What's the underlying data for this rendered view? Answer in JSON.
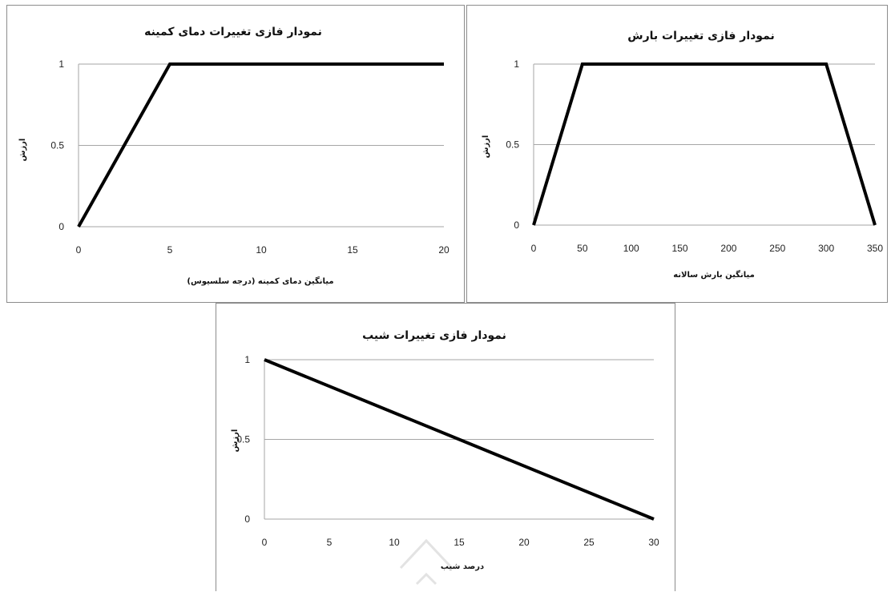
{
  "chart_data": [
    {
      "type": "line",
      "title": "نمودار فازی تغییرات دمای کمینه",
      "xlabel": "میانگین دمای کمینه (درجه سلسیوس)",
      "ylabel": "ارزش",
      "xlim": [
        0,
        20
      ],
      "ylim": [
        0,
        1
      ],
      "xticks": [
        0,
        5,
        10,
        15,
        20
      ],
      "yticks": [
        0,
        0.5,
        1
      ],
      "grid": true,
      "series": [
        {
          "x": [
            0,
            5,
            20
          ],
          "y": [
            0,
            1,
            1
          ],
          "color": "#000000"
        }
      ]
    },
    {
      "type": "line",
      "title": "نمودار فازی تغییرات بارش",
      "xlabel": "میانگین بارش سالانه",
      "ylabel": "ارزش",
      "xlim": [
        0,
        350
      ],
      "ylim": [
        0,
        1
      ],
      "xticks": [
        0,
        50,
        100,
        150,
        200,
        250,
        300,
        350
      ],
      "yticks": [
        0,
        0.5,
        1
      ],
      "grid": true,
      "series": [
        {
          "x": [
            0,
            50,
            300,
            350
          ],
          "y": [
            0,
            1,
            1,
            0
          ],
          "color": "#000000"
        }
      ]
    },
    {
      "type": "line",
      "title": "نمودار فازی تغییرات شیب",
      "xlabel": "درصد شیب",
      "ylabel": "ارزش",
      "xlim": [
        0,
        30
      ],
      "ylim": [
        0,
        1
      ],
      "xticks": [
        0,
        5,
        10,
        15,
        20,
        25,
        30
      ],
      "yticks": [
        0,
        0.5,
        1
      ],
      "grid": true,
      "series": [
        {
          "x": [
            0,
            30
          ],
          "y": [
            1,
            0
          ],
          "color": "#000000"
        }
      ]
    }
  ]
}
